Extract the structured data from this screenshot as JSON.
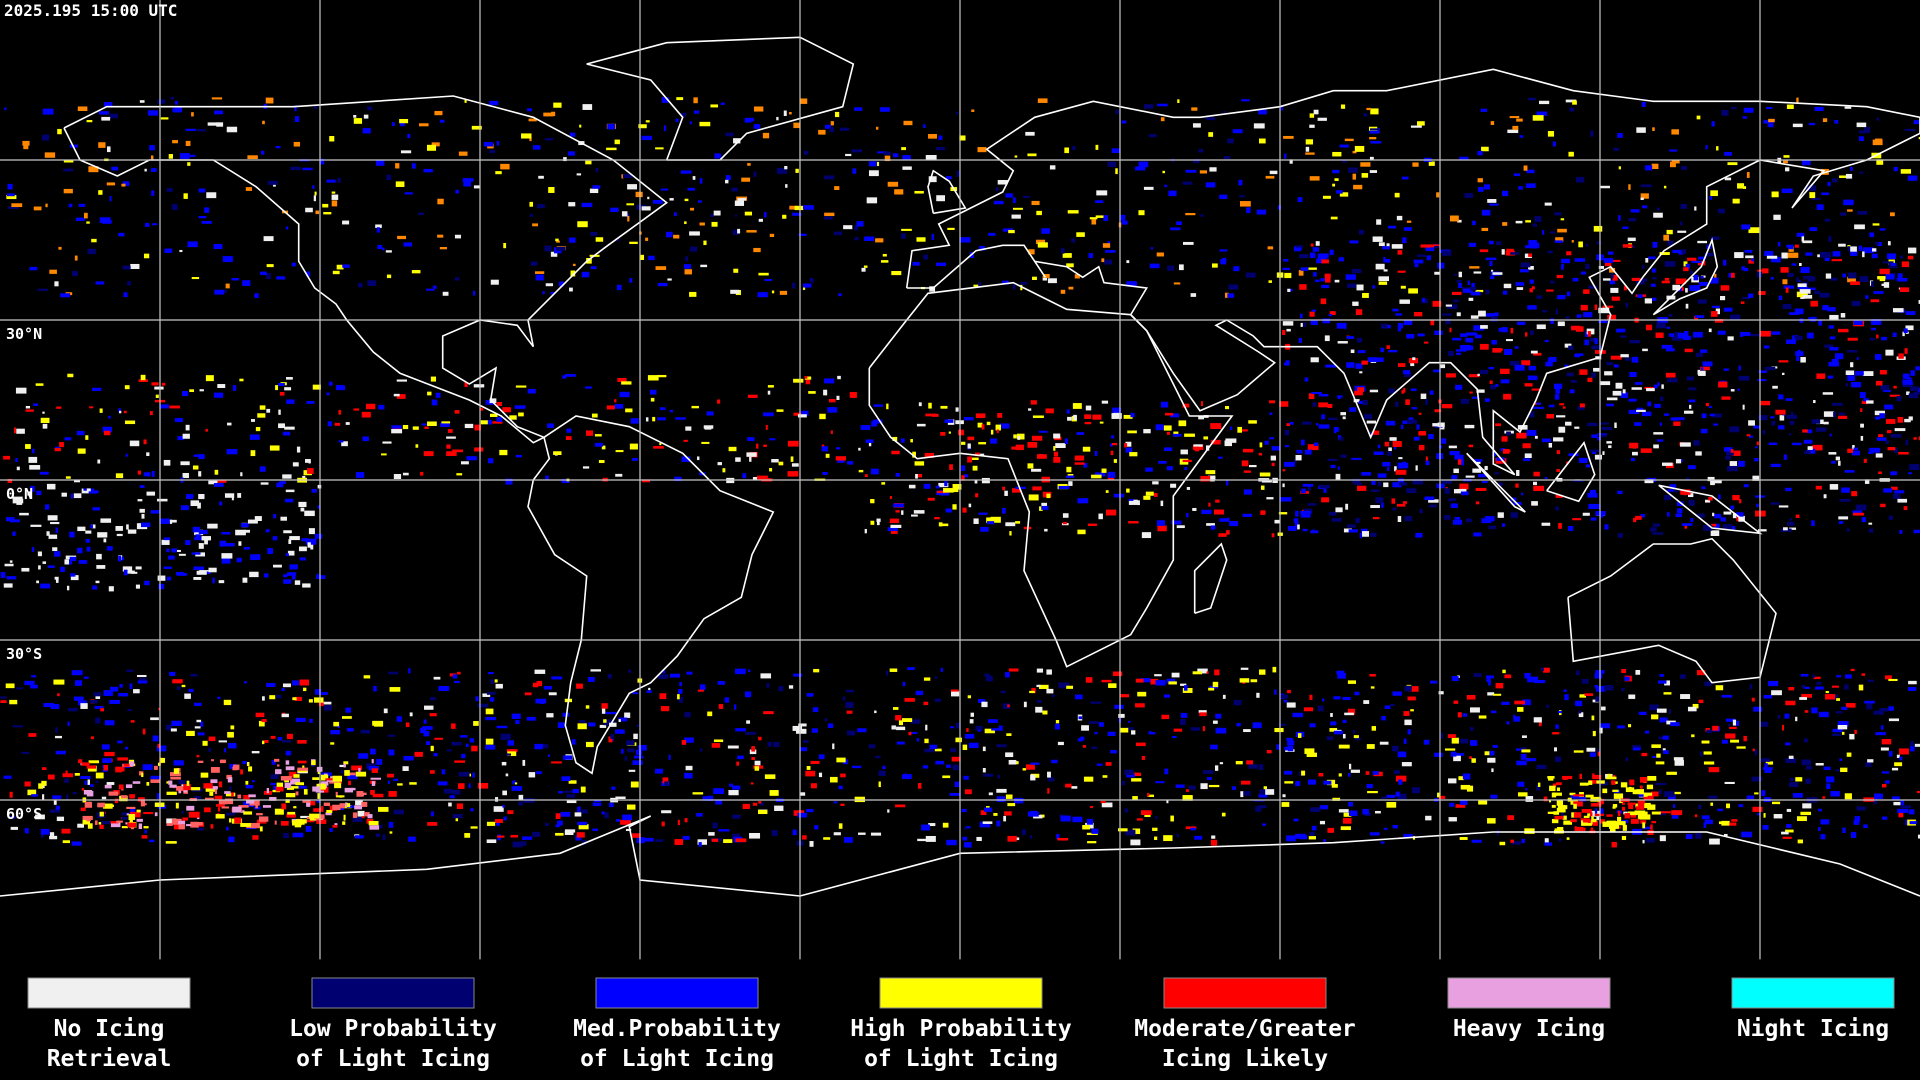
{
  "timestamp": "2025.195 15:00 UTC",
  "latitude_labels": [
    "30°N",
    "0°N",
    "30°S",
    "60°S"
  ],
  "legend": [
    {
      "color": "#f0f0f0",
      "lines": [
        "No Icing",
        "Retrieval"
      ]
    },
    {
      "color": "#000070",
      "lines": [
        "Low Probability",
        "of Light Icing"
      ]
    },
    {
      "color": "#0000ff",
      "lines": [
        "Med.Probability",
        "of Light Icing"
      ]
    },
    {
      "color": "#ffff00",
      "lines": [
        "High Probability",
        "of Light Icing"
      ]
    },
    {
      "color": "#ff0000",
      "lines": [
        "Moderate/Greater",
        "Icing Likely"
      ]
    },
    {
      "color": "#e8a0e0",
      "lines": [
        "Heavy Icing",
        ""
      ]
    },
    {
      "color": "#00ffff",
      "lines": [
        "Night Icing",
        ""
      ]
    }
  ]
}
